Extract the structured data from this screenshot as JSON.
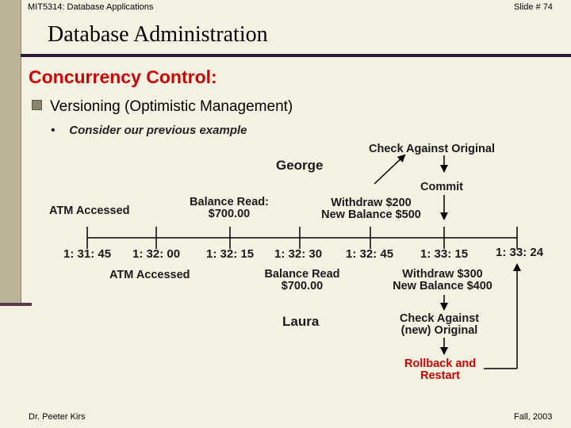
{
  "header": {
    "course": "MIT5314: Database Applications",
    "slide_number": "Slide # 74",
    "title": "Database Administration"
  },
  "section_title": "Concurrency Control:",
  "bullet": {
    "marker": "n",
    "text": "Versioning (Optimistic Management)"
  },
  "sub_bullet": {
    "marker": "•",
    "text": "Consider our previous example"
  },
  "diagram": {
    "george_label": "George",
    "laura_label": "Laura",
    "check_against_original": "Check Against Original",
    "commit": "Commit",
    "george_events": {
      "atm_accessed": "ATM Accessed",
      "balance_read_line1": "Balance Read:",
      "balance_read_line2": "$700.00",
      "withdraw_line1": "Withdraw $200",
      "withdraw_line2": "New Balance $500"
    },
    "laura_events": {
      "atm_accessed": "ATM Accessed",
      "balance_read_line1": "Balance Read",
      "balance_read_line2": "$700.00",
      "withdraw_line1": "Withdraw $300",
      "withdraw_line2": "New Balance $400",
      "check_line1": "Check Against",
      "check_line2": "(new) Original",
      "rollback_line1": "Rollback and",
      "rollback_line2": "Restart"
    },
    "times": [
      "1: 31: 45",
      "1: 32: 00",
      "1: 32: 15",
      "1: 32: 30",
      "1: 32: 45",
      "1: 33: 15",
      "1: 33: 24"
    ]
  },
  "footer": {
    "author": "Dr. Peeter Kirs",
    "term": "Fall, 2003"
  }
}
